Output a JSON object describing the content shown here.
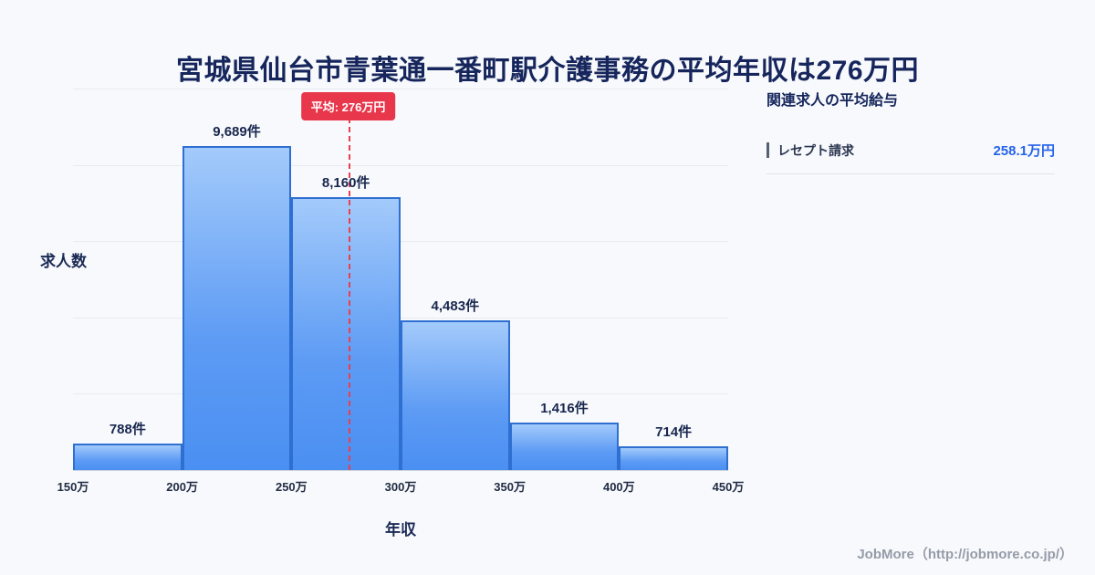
{
  "page": {
    "title": "宮城県仙台市青葉通一番町駅介護事務の平均年収は276万円",
    "background": "#f7f9fc"
  },
  "chart_data": {
    "type": "bar",
    "title": "宮城県仙台市青葉通一番町駅介護事務の平均年収は276万円",
    "xlabel": "年収",
    "ylabel": "求人数",
    "bin_edges_labels": [
      "150万",
      "200万",
      "250万",
      "300万",
      "350万",
      "400万",
      "450万"
    ],
    "categories": [
      "150万-200万",
      "200万-250万",
      "250万-300万",
      "300万-350万",
      "350万-400万",
      "400万-450万"
    ],
    "values": [
      788,
      9689,
      8160,
      4483,
      1416,
      714
    ],
    "bar_labels": [
      "788件",
      "9,689件",
      "8,160件",
      "4,483件",
      "1,416件",
      "714件"
    ],
    "x_range": [
      150,
      450
    ],
    "ylim": [
      0,
      11400
    ],
    "grid": true,
    "legend": "none",
    "average_line": {
      "x_value": 276,
      "label": "平均: 276万円",
      "line_color": "#e8404f",
      "badge_color": "#e8364b"
    },
    "bar_fill_top": "#a3cafb",
    "bar_fill_bottom": "#4a8ff2",
    "bar_border": "#2e6fd1"
  },
  "side_panel": {
    "heading": "関連求人の平均給与",
    "items": [
      {
        "label": "レセプト請求",
        "value": "258.1万円",
        "value_color": "#2563eb"
      }
    ]
  },
  "footer": {
    "credit": "JobMore（http://jobmore.co.jp/）"
  }
}
